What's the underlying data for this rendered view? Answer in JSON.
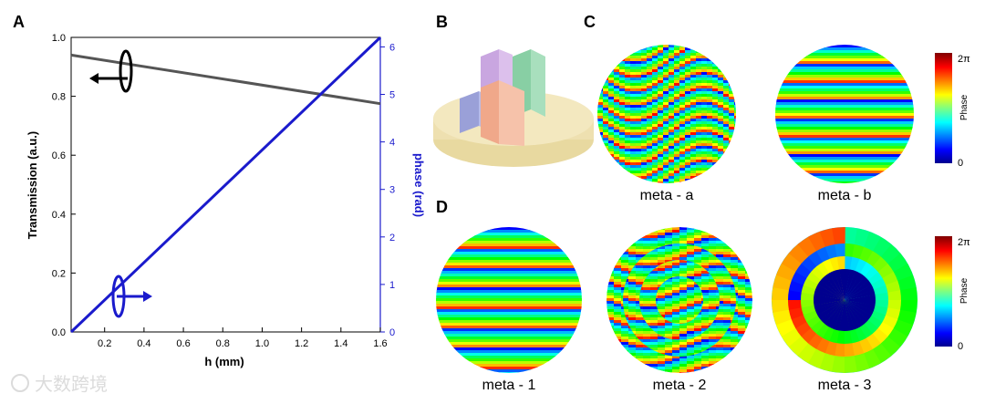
{
  "panel_labels": {
    "a": "A",
    "b": "B",
    "c": "C",
    "d": "D"
  },
  "chart_data": {
    "type": "line",
    "x": [
      0.03,
      1.6
    ],
    "xlim": [
      0.03,
      1.6
    ],
    "ylim": [
      0.0,
      1.0
    ],
    "y2lim": [
      0.0,
      6.2
    ],
    "xlabel": "h (mm)",
    "ylabel": "Transmission (a.u.)",
    "y2label": "phase (rad)",
    "xticks": [
      "0.2",
      "0.4",
      "0.6",
      "0.8",
      "1.0",
      "1.2",
      "1.4",
      "1.6"
    ],
    "yticks": [
      "0.0",
      "0.2",
      "0.4",
      "0.6",
      "0.8",
      "1.0"
    ],
    "y2ticks": [
      "0",
      "1",
      "2",
      "3",
      "4",
      "5",
      "6"
    ],
    "series": [
      {
        "name": "Transmission",
        "axis": "left",
        "color": "#555555",
        "values": [
          0.94,
          0.775
        ]
      },
      {
        "name": "Phase",
        "axis": "right",
        "color": "#1a1acc",
        "values": [
          0.0,
          6.2
        ]
      }
    ]
  },
  "colorbar": {
    "top_label": "2π",
    "bottom_label": "0",
    "title": "Phase"
  },
  "maps": {
    "meta_a": "meta - a",
    "meta_b": "meta - b",
    "meta_1": "meta - 1",
    "meta_2": "meta - 2",
    "meta_3": "meta - 3"
  },
  "watermark": "大数跨境",
  "colors": {
    "transmission": "#555555",
    "phase": "#1a1acc"
  }
}
